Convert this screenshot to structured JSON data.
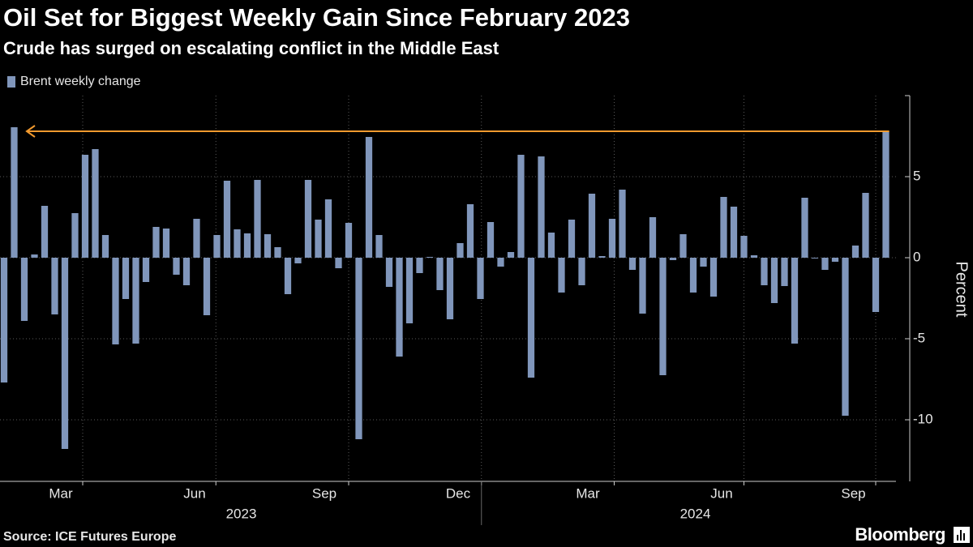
{
  "chart_data": {
    "type": "bar",
    "title": "Oil Set for Biggest Weekly Gain Since February 2023",
    "subtitle": "Crude has surged on escalating conflict in the Middle East",
    "y_axis_label": "Percent",
    "source": "Source: ICE Futures Europe",
    "brand": "Bloomberg",
    "categories": [
      null,
      null,
      null,
      null,
      null,
      null,
      null,
      null,
      null,
      null,
      null,
      null,
      null,
      null,
      null,
      null,
      null,
      null,
      null,
      null,
      null,
      null,
      null,
      null,
      null,
      null,
      null,
      null,
      null,
      null,
      null,
      null,
      null,
      null,
      null,
      null,
      null,
      null,
      null,
      null,
      null,
      null,
      null,
      null,
      null,
      null,
      null,
      null,
      null,
      null,
      null,
      null,
      null,
      null,
      null,
      null,
      null,
      null,
      null,
      null,
      null,
      null,
      null,
      null,
      null,
      null,
      null,
      null,
      null,
      null,
      null,
      null,
      null,
      null,
      null,
      null,
      null,
      null,
      null,
      null,
      null,
      null,
      null,
      null,
      null,
      null,
      null,
      null
    ],
    "series": [
      {
        "name": "Brent weekly change",
        "color": "#8096bb",
        "values": [
          -7.7,
          8.05,
          -3.9,
          0.2,
          3.2,
          -3.5,
          -11.8,
          2.75,
          6.35,
          6.7,
          1.4,
          -5.35,
          -2.55,
          -5.3,
          -1.5,
          1.9,
          1.8,
          -1.05,
          -1.7,
          2.4,
          -3.55,
          1.4,
          4.75,
          1.75,
          1.5,
          4.8,
          1.45,
          0.65,
          -2.25,
          -0.35,
          4.8,
          2.35,
          3.6,
          -0.65,
          2.15,
          -11.2,
          7.45,
          1.4,
          -1.8,
          -6.1,
          -4.05,
          -0.95,
          0.05,
          -2.0,
          -3.8,
          0.9,
          3.3,
          -2.55,
          2.2,
          -0.55,
          0.35,
          6.35,
          -7.4,
          6.25,
          1.55,
          -2.15,
          2.35,
          -1.7,
          3.95,
          0.1,
          2.4,
          4.2,
          -0.75,
          -3.45,
          2.5,
          -7.25,
          -0.15,
          1.45,
          -2.15,
          -0.55,
          -2.4,
          3.75,
          3.15,
          1.35,
          0.15,
          -1.7,
          -2.8,
          -1.75,
          -5.3,
          3.7,
          -0.05,
          -0.75,
          -0.25,
          -9.75,
          0.75,
          4.0,
          -3.35,
          7.8
        ]
      }
    ],
    "arrow_color": "#f29a2e",
    "ylim": [
      -13.8,
      10
    ],
    "yticks": [
      -10,
      -5,
      0,
      5
    ],
    "xlim": [
      -0.4,
      88
    ],
    "xticks": [
      {
        "value": 5.6,
        "label": "Mar"
      },
      {
        "value": 18.8,
        "label": "Jun"
      },
      {
        "value": 31.6,
        "label": "Sep"
      },
      {
        "value": 44.8,
        "label": "Dec"
      },
      {
        "value": 57.6,
        "label": "Mar"
      },
      {
        "value": 70.8,
        "label": "Jun"
      },
      {
        "value": 83.8,
        "label": "Sep"
      }
    ],
    "xgrid": [
      7.76,
      20.9,
      34,
      47.1,
      60.2,
      73,
      86
    ],
    "xyears": [
      {
        "value": 23.4,
        "label": "2023"
      },
      {
        "value": 68.2,
        "label": "2024"
      }
    ],
    "year_break": 47.1,
    "grid": true
  }
}
